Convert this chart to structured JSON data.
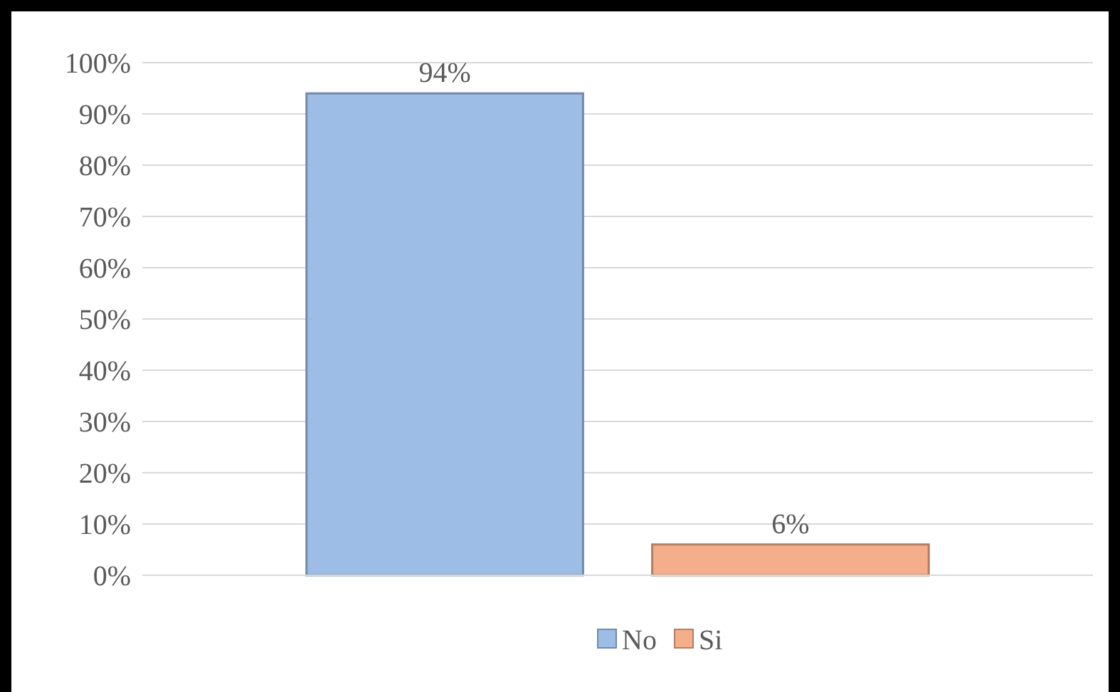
{
  "chart_data": {
    "type": "bar",
    "categories": [
      null
    ],
    "series": [
      {
        "name": "No",
        "color": "#9dbde6",
        "values": [
          94
        ],
        "value_labels": [
          "94%"
        ]
      },
      {
        "name": "Si",
        "color": "#f4ae8a",
        "values": [
          6
        ],
        "value_labels": [
          "6%"
        ]
      }
    ],
    "ylim": [
      0,
      100
    ],
    "yticks": [
      {
        "value": 0,
        "label": "0%"
      },
      {
        "value": 10,
        "label": "10%"
      },
      {
        "value": 20,
        "label": "20%"
      },
      {
        "value": 30,
        "label": "30%"
      },
      {
        "value": 40,
        "label": "40%"
      },
      {
        "value": 50,
        "label": "50%"
      },
      {
        "value": 60,
        "label": "60%"
      },
      {
        "value": 70,
        "label": "70%"
      },
      {
        "value": 80,
        "label": "80%"
      },
      {
        "value": 90,
        "label": "90%"
      },
      {
        "value": 100,
        "label": "100%"
      }
    ],
    "grid": "y",
    "legend": "bottom"
  }
}
